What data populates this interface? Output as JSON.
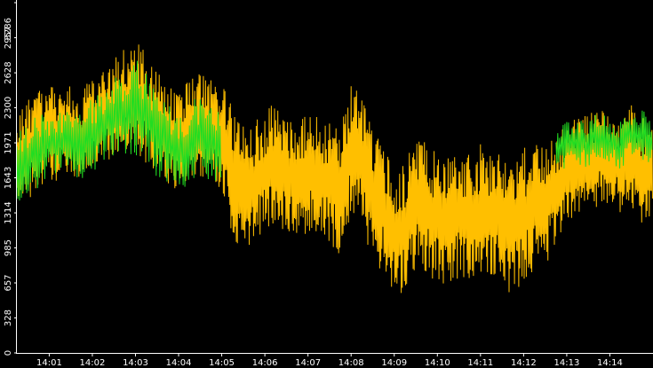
{
  "chart_data": {
    "type": "line",
    "title": "",
    "xlabel": "",
    "ylabel": "",
    "ylim": [
      0,
      3286
    ],
    "y_ticks": [
      0,
      328,
      657,
      985,
      1314,
      1643,
      1971,
      2300,
      2628,
      2957,
      3286
    ],
    "x_ticks": [
      "14:01",
      "14:02",
      "14:03",
      "14:04",
      "14:05",
      "14:06",
      "14:07",
      "14:08",
      "14:09",
      "14:10",
      "14:11",
      "14:12",
      "14:13",
      "14:14"
    ],
    "x_range": [
      "14:00:15",
      "14:15:00"
    ],
    "grid": false,
    "legend": "none",
    "background": "#000000",
    "axis_color": "#ffffff",
    "series": [
      {
        "color": "#ffbf00",
        "t": [
          "14:00:15",
          "14:00:30",
          "14:00:45",
          "14:01:00",
          "14:01:15",
          "14:01:30",
          "14:01:45",
          "14:02:00",
          "14:02:15",
          "14:02:30",
          "14:02:45",
          "14:03:00",
          "14:03:15",
          "14:03:30",
          "14:03:45",
          "14:04:00",
          "14:04:15",
          "14:04:30",
          "14:04:45",
          "14:05:00",
          "14:05:15",
          "14:05:30",
          "14:05:45",
          "14:06:00",
          "14:06:15",
          "14:06:30",
          "14:06:45",
          "14:07:00",
          "14:07:15",
          "14:07:30",
          "14:07:45",
          "14:08:00",
          "14:08:15",
          "14:08:30",
          "14:08:45",
          "14:09:00",
          "14:09:15",
          "14:09:30",
          "14:09:45",
          "14:10:00",
          "14:10:15",
          "14:10:30",
          "14:10:45",
          "14:11:00",
          "14:11:15",
          "14:11:30",
          "14:11:45",
          "14:12:00",
          "14:12:15",
          "14:12:30",
          "14:12:45",
          "14:13:00",
          "14:13:15",
          "14:13:30",
          "14:13:45",
          "14:14:00",
          "14:14:15",
          "14:14:30",
          "14:14:45",
          "14:15:00"
        ],
        "center": [
          1850,
          1900,
          2000,
          2050,
          2050,
          2100,
          2000,
          2150,
          2200,
          2300,
          2350,
          2400,
          2300,
          2150,
          2050,
          2000,
          2050,
          2150,
          2100,
          2050,
          1700,
          1550,
          1600,
          1700,
          1800,
          1650,
          1600,
          1700,
          1650,
          1600,
          1500,
          1900,
          1850,
          1500,
          1350,
          1100,
          1200,
          1400,
          1350,
          1250,
          1200,
          1300,
          1250,
          1350,
          1300,
          1250,
          1200,
          1300,
          1350,
          1400,
          1500,
          1700,
          1800,
          1750,
          1850,
          1800,
          1750,
          1850,
          1700,
          1750
        ],
        "spread": [
          900,
          950,
          950,
          900,
          850,
          850,
          900,
          900,
          900,
          950,
          1000,
          1100,
          1050,
          1000,
          950,
          950,
          1000,
          1000,
          1050,
          1000,
          1200,
          1250,
          1150,
          1150,
          1150,
          1150,
          1200,
          1150,
          1150,
          1200,
          1200,
          1300,
          1350,
          1300,
          1250,
          1300,
          1250,
          1250,
          1250,
          1250,
          1250,
          1250,
          1250,
          1250,
          1250,
          1300,
          1300,
          1250,
          1200,
          1150,
          1100,
          1000,
          950,
          950,
          950,
          900,
          900,
          950,
          1000,
          1000
        ],
        "points_per_step": 5
      },
      {
        "color": "#22dd22",
        "t": [
          "14:00:15",
          "14:00:30",
          "14:00:45",
          "14:01:00",
          "14:01:15",
          "14:01:30",
          "14:01:45",
          "14:02:00",
          "14:02:15",
          "14:02:30",
          "14:02:45",
          "14:03:00",
          "14:03:15",
          "14:03:30",
          "14:03:45",
          "14:04:00",
          "14:04:15",
          "14:04:30",
          "14:04:45",
          "14:05:00",
          "14:05:15",
          "14:05:30",
          "14:05:45",
          "14:06:00",
          "14:06:15",
          "14:06:30",
          "14:06:45",
          "14:07:00",
          "14:07:15",
          "14:07:30",
          "14:07:45",
          "14:08:00",
          "14:08:15",
          "14:08:30",
          "14:08:45",
          "14:09:00",
          "14:09:15",
          "14:09:30",
          "14:09:45",
          "14:10:00",
          "14:10:15",
          "14:10:30",
          "14:10:45",
          "14:11:00",
          "14:11:15",
          "14:11:30",
          "14:11:45",
          "14:12:00",
          "14:12:15",
          "14:12:30",
          "14:12:45",
          "14:13:00",
          "14:13:15",
          "14:13:30",
          "14:13:45",
          "14:14:00",
          "14:14:15",
          "14:14:30",
          "14:14:45",
          "14:15:00"
        ],
        "center": [
          1750,
          1800,
          1900,
          1950,
          1950,
          2000,
          1900,
          2050,
          2100,
          2200,
          2250,
          2300,
          2200,
          2050,
          1950,
          1900,
          1950,
          2050,
          2000,
          1950,
          null,
          null,
          null,
          null,
          null,
          null,
          null,
          null,
          null,
          null,
          null,
          2100,
          null,
          null,
          null,
          null,
          null,
          null,
          null,
          null,
          null,
          null,
          null,
          null,
          null,
          null,
          null,
          null,
          null,
          null,
          1900,
          1950,
          2000,
          1950,
          2050,
          2000,
          1950,
          2050,
          2050,
          2000
        ],
        "spread": [
          700,
          700,
          700,
          650,
          650,
          650,
          700,
          700,
          700,
          750,
          800,
          1000,
          900,
          800,
          750,
          750,
          800,
          750,
          800,
          700,
          0,
          0,
          0,
          0,
          0,
          0,
          0,
          0,
          0,
          0,
          0,
          500,
          0,
          0,
          0,
          0,
          0,
          0,
          0,
          0,
          0,
          0,
          0,
          0,
          0,
          0,
          0,
          0,
          0,
          0,
          400,
          450,
          450,
          450,
          450,
          450,
          450,
          450,
          500,
          500
        ],
        "points_per_step": 3
      }
    ]
  }
}
